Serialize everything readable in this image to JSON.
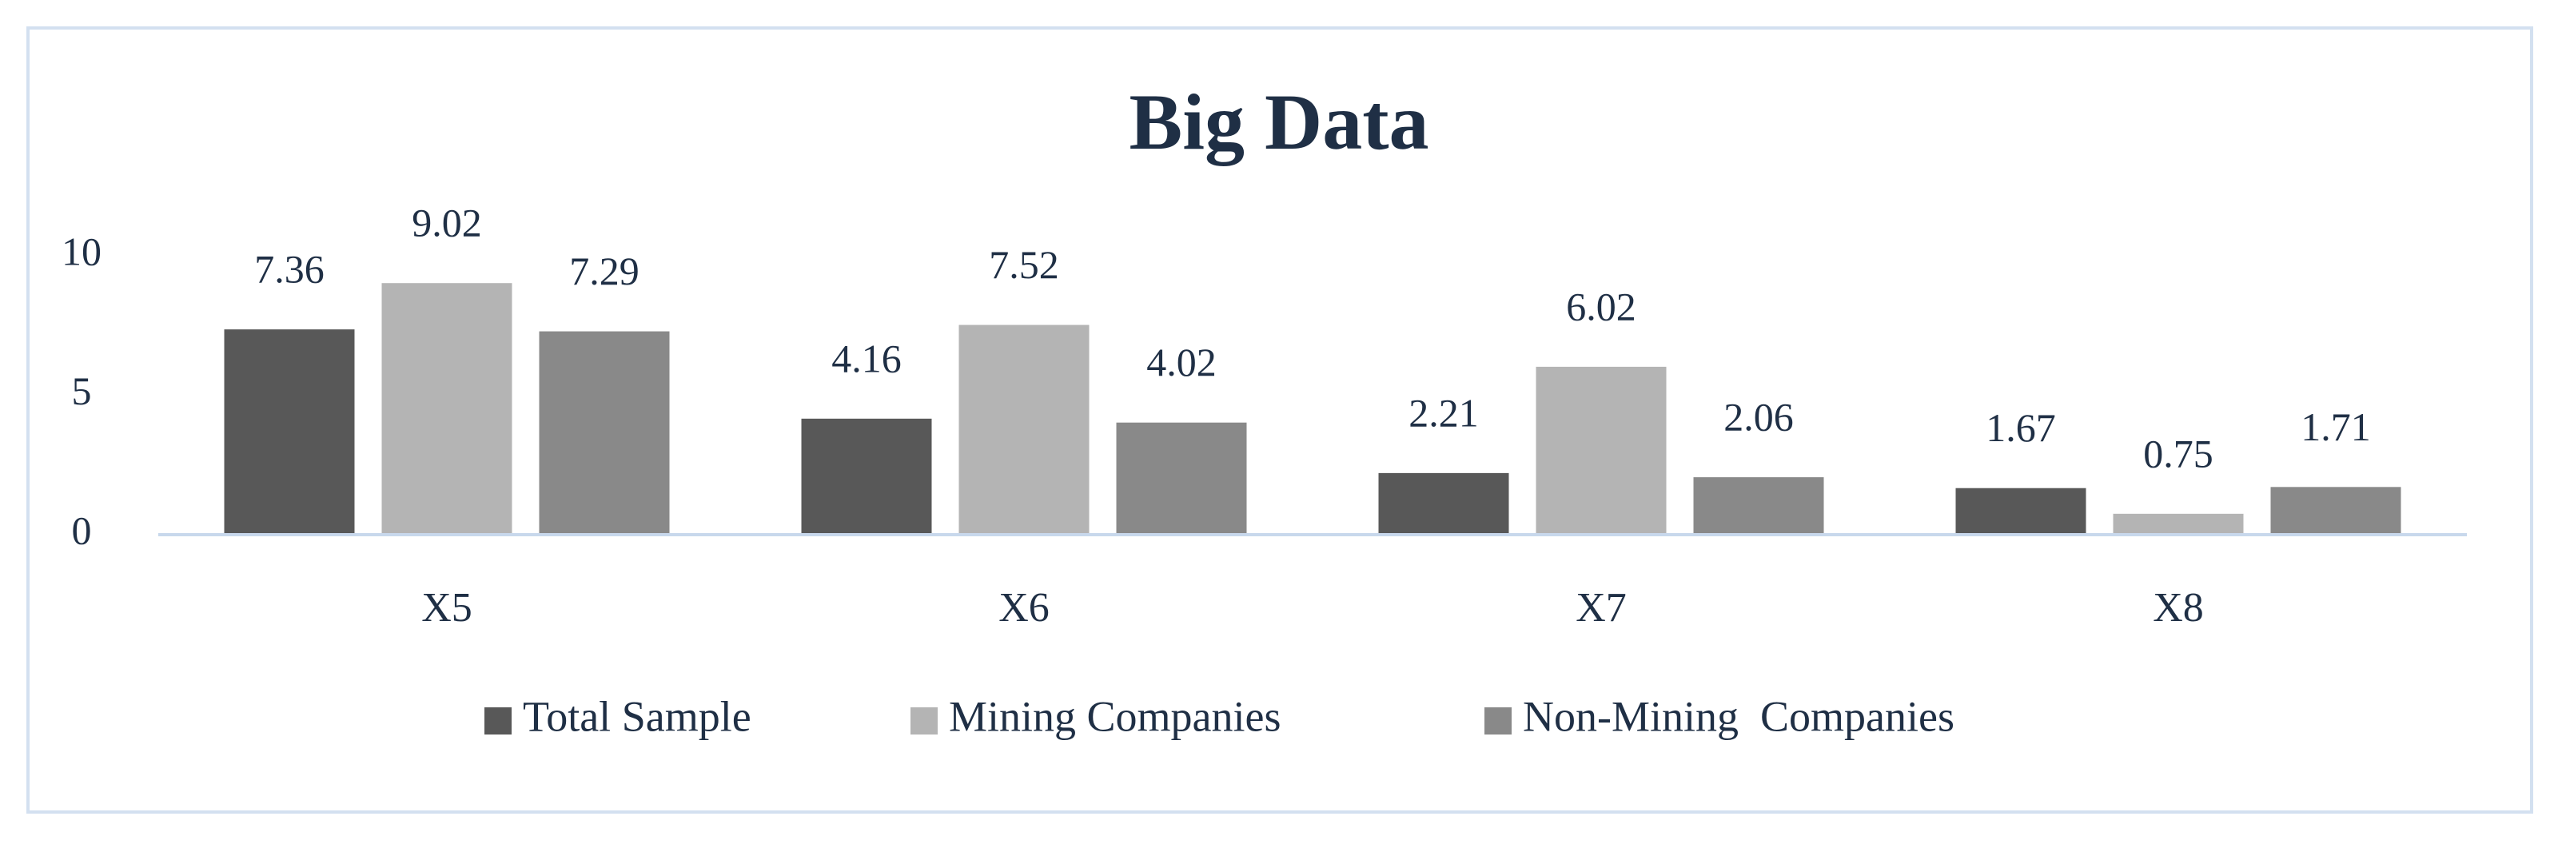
{
  "chart_data": {
    "type": "bar",
    "title": "Big Data",
    "categories": [
      "X5",
      "X6",
      "X7",
      "X8"
    ],
    "series": [
      {
        "name": "Total Sample",
        "color": "#585858",
        "values": [
          7.36,
          4.16,
          2.21,
          1.67
        ]
      },
      {
        "name": "Mining Companies",
        "color": "#b4b4b4",
        "values": [
          9.02,
          7.52,
          6.02,
          0.75
        ]
      },
      {
        "name": "Non-Mining  Companies",
        "color": "#898989",
        "values": [
          7.29,
          4.02,
          2.06,
          1.71
        ]
      }
    ],
    "ylim": [
      0,
      10
    ],
    "yticks": [
      0,
      5,
      10
    ],
    "grid": false,
    "legend": "bottom"
  }
}
